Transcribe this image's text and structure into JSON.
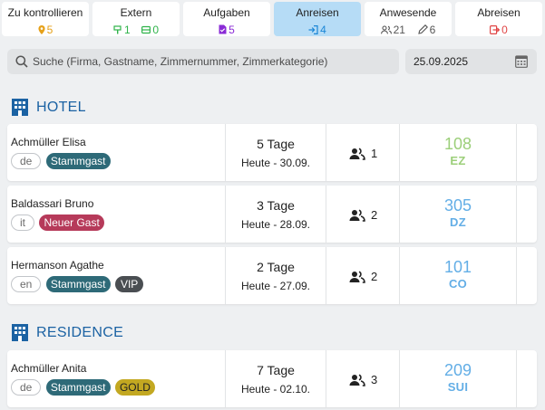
{
  "tabs": [
    {
      "label": "Zu kontrollieren",
      "value": "5",
      "color": "#e6a11a",
      "icon": "pin-icon"
    },
    {
      "label": "Extern",
      "value_a": "1",
      "value_b": "0",
      "color": "#2fb34a",
      "icon_a": "broom-icon",
      "icon_b": "bed-icon"
    },
    {
      "label": "Aufgaben",
      "value": "5",
      "color": "#8a2bd6",
      "icon": "task-icon"
    },
    {
      "label": "Anreisen",
      "value": "4",
      "color": "#1b86d6",
      "icon": "login-icon"
    },
    {
      "label": "Anwesende",
      "value_a": "21",
      "value_b": "6",
      "color": "#555555",
      "icon_a": "guests-icon",
      "icon_b": "pencil-icon"
    },
    {
      "label": "Abreisen",
      "value": "0",
      "color": "#e04545",
      "icon": "logout-icon"
    }
  ],
  "search": {
    "placeholder": "Suche (Firma, Gastname, Zimmernummer, Zimmerkategorie)"
  },
  "date": {
    "value": "25.09.2025"
  },
  "sections": [
    {
      "title": "HOTEL"
    },
    {
      "title": "RESIDENCE"
    }
  ],
  "cards": [
    {
      "name": "Achmüller Elisa",
      "lang": "de",
      "tags": [
        {
          "label": "Stammgast",
          "kind": "stamm"
        }
      ],
      "nights": "5 Tage",
      "range": "Heute - 30.09.",
      "guests": "1",
      "room": "108",
      "category": "EZ",
      "room_color": "#9ccf7a"
    },
    {
      "name": "Baldassari Bruno",
      "lang": "it",
      "tags": [
        {
          "label": "Neuer Gast",
          "kind": "neu"
        }
      ],
      "nights": "3 Tage",
      "range": "Heute - 28.09.",
      "guests": "2",
      "room": "305",
      "category": "DZ",
      "room_color": "#63aee6"
    },
    {
      "name": "Hermanson Agathe",
      "lang": "en",
      "tags": [
        {
          "label": "Stammgast",
          "kind": "stamm"
        },
        {
          "label": "VIP",
          "kind": "vip"
        }
      ],
      "nights": "2 Tage",
      "range": "Heute - 27.09.",
      "guests": "2",
      "room": "101",
      "category": "CO",
      "room_color": "#63aee6"
    },
    {
      "name": "Achmüller Anita",
      "lang": "de",
      "tags": [
        {
          "label": "Stammgast",
          "kind": "stamm"
        },
        {
          "label": "GOLD",
          "kind": "gold"
        }
      ],
      "nights": "7 Tage",
      "range": "Heute - 02.10.",
      "guests": "3",
      "room": "209",
      "category": "SUI",
      "room_color": "#63aee6"
    }
  ]
}
